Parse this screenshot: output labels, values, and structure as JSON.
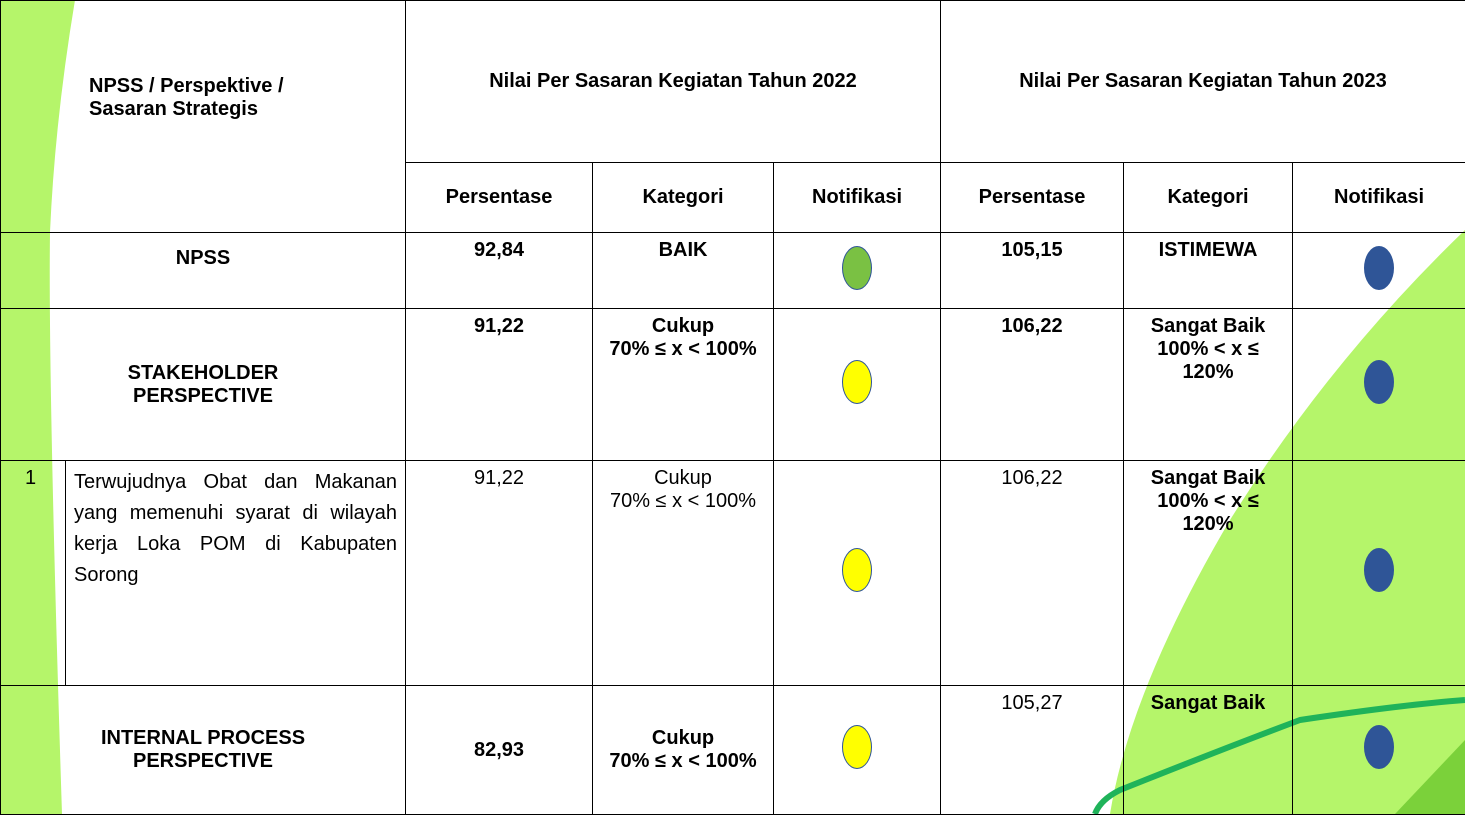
{
  "header": {
    "col1": "NPSS / Perspektive / Sasaran Strategis",
    "year2022": "Nilai Per Sasaran Kegiatan Tahun 2022",
    "year2023": "Nilai Per Sasaran Kegiatan Tahun 2023",
    "sub": [
      "Persentase",
      "Kategori",
      "Notifikasi",
      "Persentase",
      "Kategori",
      "Notifikasi"
    ]
  },
  "rows": [
    {
      "label": "NPSS",
      "p2022": "92,84",
      "k2022": [
        "BAIK"
      ],
      "n2022": "#7ac143",
      "p2023": "105,15",
      "k2023": [
        "ISTIMEWA"
      ],
      "n2023": "#2f5597"
    },
    {
      "label": "STAKEHOLDER PERSPECTIVE",
      "p2022": "91,22",
      "k2022": [
        "Cukup",
        "70% ≤ x < 100%"
      ],
      "n2022": "#ffff00",
      "p2023": "106,22",
      "k2023": [
        "Sangat Baik",
        "100% < x ≤ 120%"
      ],
      "n2023": "#2f5597"
    },
    {
      "no": "1",
      "label": "Terwujudnya Obat dan Makanan yang memenuhi syarat di wilayah kerja Loka POM di Kabupaten Sorong",
      "p2022": "91,22",
      "k2022": [
        "Cukup",
        "70% ≤ x < 100%"
      ],
      "n2022": "#ffff00",
      "p2023": "106,22",
      "k2023": [
        "Sangat Baik",
        "100% < x ≤ 120%"
      ],
      "n2023": "#2f5597"
    },
    {
      "label": "INTERNAL PROCESS PERSPECTIVE",
      "p2022": "82,93",
      "k2022": [
        "Cukup",
        "70% ≤ x < 100%"
      ],
      "n2022": "#ffff00",
      "p2023": "105,27",
      "k2023": [
        "Sangat Baik"
      ],
      "n2023": "#2f5597"
    }
  ]
}
